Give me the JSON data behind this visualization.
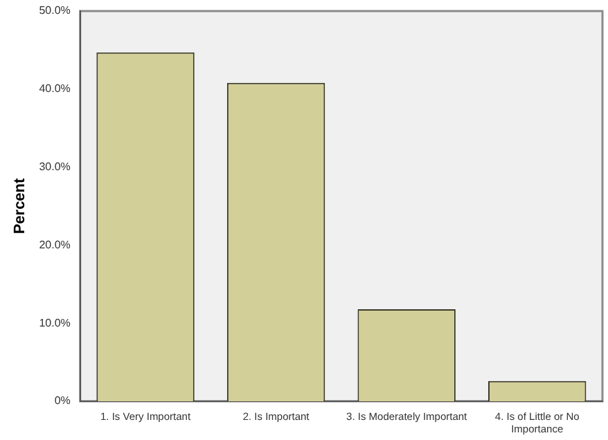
{
  "chart_data": {
    "type": "bar",
    "ylabel": "Percent",
    "categories": [
      "1. Is Very Important",
      "2. Is Important",
      "3. Is Moderately Important",
      "4. Is of Little or No Importance"
    ],
    "values": [
      44.7,
      40.8,
      11.8,
      2.6
    ],
    "color": "#d3cf98",
    "ylim": [
      0,
      50
    ],
    "yticks": [
      {
        "value": 0,
        "label": "0%"
      },
      {
        "value": 10,
        "label": "10.0%"
      },
      {
        "value": 20,
        "label": "20.0%"
      },
      {
        "value": 30,
        "label": "30.0%"
      },
      {
        "value": 40,
        "label": "40.0%"
      },
      {
        "value": 50,
        "label": "50.0%"
      }
    ],
    "grid": false,
    "legend": false
  }
}
